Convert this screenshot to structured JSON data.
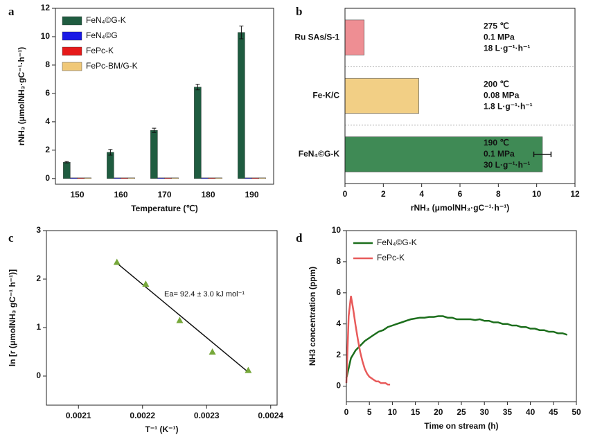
{
  "chart_data": [
    {
      "type": "bar",
      "panel": "a",
      "xlabel": "Temperature (℃)",
      "ylabel": "rNH₃ (μmolNH₃·gC⁻¹·h⁻¹)",
      "categories": [
        "150",
        "160",
        "170",
        "180",
        "190"
      ],
      "series": [
        {
          "name": "FeN₄©G-K",
          "color": "#1f5c40",
          "values": [
            1.15,
            1.85,
            3.4,
            6.45,
            10.3
          ],
          "errors": [
            0.05,
            0.2,
            0.15,
            0.2,
            0.45
          ]
        },
        {
          "name": "FeN₄©G",
          "color": "#1a1ae6",
          "values": [
            0.05,
            0.05,
            0.05,
            0.05,
            0.05
          ]
        },
        {
          "name": "FePc-K",
          "color": "#e61a1a",
          "values": [
            0.05,
            0.05,
            0.05,
            0.05,
            0.05
          ]
        },
        {
          "name": "FePc-BM/G-K",
          "color": "#f0c878",
          "values": [
            0.05,
            0.05,
            0.05,
            0.05,
            0.05
          ]
        }
      ],
      "ylim": [
        -0.4,
        12
      ],
      "yticks": [
        0,
        2,
        4,
        6,
        8,
        10,
        12
      ]
    },
    {
      "type": "hbar",
      "panel": "b",
      "xlabel": "rNH₃ (μmolNH₃·gC⁻¹·h⁻¹)",
      "categories": [
        "Ru SAs/S-1",
        "Fe-K/C",
        "FeN₄©G-K"
      ],
      "values": [
        1.0,
        3.85,
        10.3
      ],
      "errors": [
        null,
        null,
        0.45
      ],
      "colors": [
        "#ee8e93",
        "#f2cf85",
        "#3f8a55"
      ],
      "annotations": [
        [
          "275 ℃",
          "0.1 MPa",
          "18 L·g⁻¹·h⁻¹"
        ],
        [
          "200 ℃",
          "0.08 MPa",
          "1.8 L·g⁻¹·h⁻¹"
        ],
        [
          "190 ℃",
          "0.1 MPa",
          "30 L·g⁻¹·h⁻¹"
        ]
      ],
      "xlim": [
        0,
        12
      ],
      "xticks": [
        0,
        2,
        4,
        6,
        8,
        10,
        12
      ]
    },
    {
      "type": "scatter",
      "panel": "c",
      "xlabel": "T⁻¹ (K⁻¹)",
      "ylabel": "ln [r (μmolNH₃ gC⁻¹ h⁻¹)]",
      "annotation": "Ea= 92.4 ± 3.0 kJ mol⁻¹",
      "x": [
        0.00216,
        0.002205,
        0.002258,
        0.002309,
        0.002365
      ],
      "values": [
        2.35,
        1.9,
        1.15,
        0.5,
        0.12
      ],
      "color": "#76a83a",
      "fit": {
        "x": [
          0.00216,
          0.002365
        ],
        "y": [
          2.33,
          0.08
        ]
      },
      "xlim": [
        0.00205,
        0.00241
      ],
      "xticks": [
        0.0021,
        0.0022,
        0.0023,
        0.0024
      ],
      "ylim": [
        -0.6,
        3
      ],
      "yticks": [
        0,
        1,
        2,
        3
      ]
    },
    {
      "type": "line",
      "panel": "d",
      "xlabel": "Time on stream (h)",
      "ylabel": "NH3 concentration (ppm)",
      "series": [
        {
          "name": "FeN₄©G-K",
          "color": "#1c6e1c",
          "x": [
            0,
            1,
            2,
            3,
            4,
            5,
            6,
            7,
            8,
            9,
            10,
            11,
            12,
            13,
            14,
            15,
            16,
            17,
            18,
            19,
            20,
            21,
            22,
            23,
            24,
            25,
            26,
            27,
            28,
            29,
            30,
            31,
            32,
            33,
            34,
            35,
            36,
            37,
            38,
            39,
            40,
            41,
            42,
            43,
            44,
            45,
            46,
            47,
            48
          ],
          "values": [
            0.5,
            1.8,
            2.3,
            2.6,
            2.9,
            3.1,
            3.3,
            3.5,
            3.6,
            3.8,
            3.9,
            4.0,
            4.1,
            4.2,
            4.3,
            4.35,
            4.4,
            4.4,
            4.45,
            4.45,
            4.5,
            4.5,
            4.4,
            4.4,
            4.3,
            4.3,
            4.3,
            4.3,
            4.25,
            4.3,
            4.2,
            4.2,
            4.1,
            4.1,
            4.0,
            4.0,
            3.9,
            3.9,
            3.8,
            3.8,
            3.7,
            3.7,
            3.6,
            3.6,
            3.5,
            3.5,
            3.4,
            3.4,
            3.3
          ]
        },
        {
          "name": "FePc-K",
          "color": "#e85a5a",
          "x": [
            0,
            0.5,
            1,
            1.5,
            2,
            2.5,
            3,
            3.5,
            4,
            4.5,
            5,
            5.5,
            6,
            6.5,
            7,
            7.5,
            8,
            8.5,
            9,
            9.5
          ],
          "values": [
            0.2,
            4.5,
            5.8,
            4.9,
            3.9,
            3.0,
            2.2,
            1.6,
            1.1,
            0.8,
            0.6,
            0.5,
            0.4,
            0.3,
            0.3,
            0.2,
            0.2,
            0.2,
            0.1,
            0.1
          ]
        }
      ],
      "xlim": [
        0,
        50
      ],
      "xticks": [
        0,
        5,
        10,
        15,
        20,
        25,
        30,
        35,
        40,
        45,
        50
      ],
      "ylim": [
        -1,
        10
      ],
      "yticks": [
        0,
        2,
        4,
        6,
        8,
        10
      ]
    }
  ]
}
